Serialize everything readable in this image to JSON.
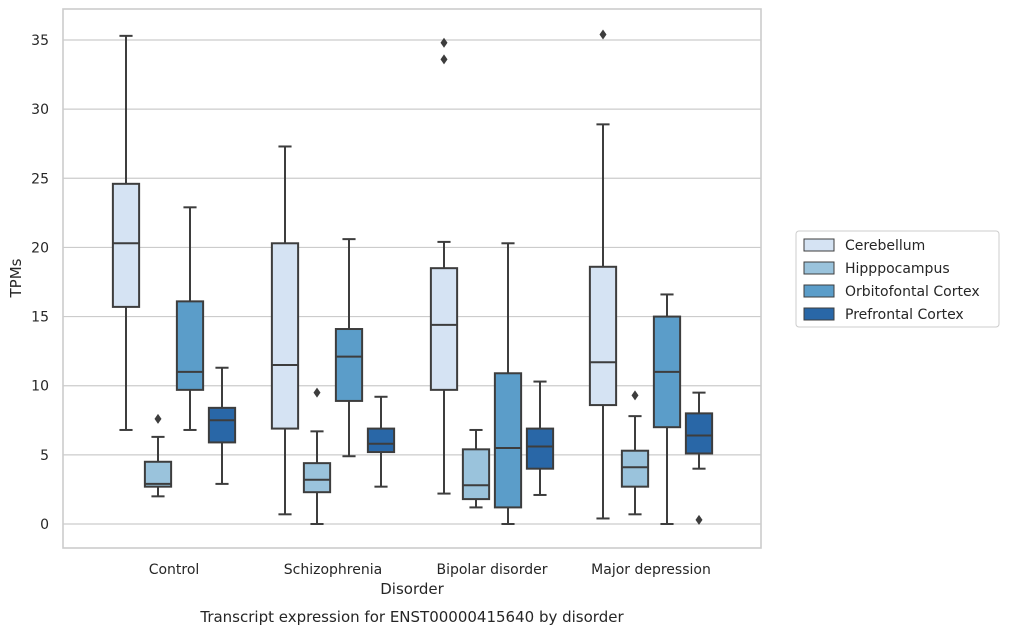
{
  "chart_data": {
    "type": "boxplot",
    "title": "",
    "caption": "Transcript expression for ENST00000415640 by disorder",
    "xlabel": "Disorder",
    "ylabel": "TPMs",
    "ylim": [
      -1.7,
      37.2
    ],
    "yticks": [
      0,
      5,
      10,
      15,
      20,
      25,
      30,
      35
    ],
    "grid": "horizontal",
    "legend_position": "right-outside",
    "categories": [
      "Control",
      "Schizophrenia",
      "Bipolar disorder",
      "Major depression"
    ],
    "series": [
      {
        "name": "Cerebellum",
        "color": "#d5e3f3",
        "boxes": [
          {
            "whisker_low": 6.8,
            "q1": 15.7,
            "median": 20.3,
            "q3": 24.6,
            "whisker_high": 35.3,
            "outliers": []
          },
          {
            "whisker_low": 0.7,
            "q1": 6.9,
            "median": 11.5,
            "q3": 20.3,
            "whisker_high": 27.3,
            "outliers": []
          },
          {
            "whisker_low": 2.2,
            "q1": 9.7,
            "median": 14.4,
            "q3": 18.5,
            "whisker_high": 20.4,
            "outliers": [
              33.6,
              34.8
            ]
          },
          {
            "whisker_low": 0.4,
            "q1": 8.6,
            "median": 11.7,
            "q3": 18.6,
            "whisker_high": 28.9,
            "outliers": [
              35.4
            ]
          }
        ]
      },
      {
        "name": "Hipppocampus",
        "color": "#9ac3dc",
        "boxes": [
          {
            "whisker_low": 2.0,
            "q1": 2.7,
            "median": 2.9,
            "q3": 4.5,
            "whisker_high": 6.3,
            "outliers": [
              7.6
            ]
          },
          {
            "whisker_low": 0.0,
            "q1": 2.3,
            "median": 3.2,
            "q3": 4.4,
            "whisker_high": 6.7,
            "outliers": [
              9.5
            ]
          },
          {
            "whisker_low": 1.2,
            "q1": 1.8,
            "median": 2.8,
            "q3": 5.4,
            "whisker_high": 6.8,
            "outliers": []
          },
          {
            "whisker_low": 0.7,
            "q1": 2.7,
            "median": 4.1,
            "q3": 5.3,
            "whisker_high": 7.8,
            "outliers": [
              9.3
            ]
          }
        ]
      },
      {
        "name": "Orbitofontal Cortex",
        "color": "#5b9dc9",
        "boxes": [
          {
            "whisker_low": 6.8,
            "q1": 9.7,
            "median": 11.0,
            "q3": 16.1,
            "whisker_high": 22.9,
            "outliers": []
          },
          {
            "whisker_low": 4.9,
            "q1": 8.9,
            "median": 12.1,
            "q3": 14.1,
            "whisker_high": 20.6,
            "outliers": []
          },
          {
            "whisker_low": 0.0,
            "q1": 1.2,
            "median": 5.5,
            "q3": 10.9,
            "whisker_high": 20.3,
            "outliers": []
          },
          {
            "whisker_low": 0.0,
            "q1": 7.0,
            "median": 11.0,
            "q3": 15.0,
            "whisker_high": 16.6,
            "outliers": []
          }
        ]
      },
      {
        "name": "Prefrontal Cortex",
        "color": "#2967a7",
        "boxes": [
          {
            "whisker_low": 2.9,
            "q1": 5.9,
            "median": 7.5,
            "q3": 8.4,
            "whisker_high": 11.3,
            "outliers": []
          },
          {
            "whisker_low": 2.7,
            "q1": 5.2,
            "median": 5.8,
            "q3": 6.9,
            "whisker_high": 9.2,
            "outliers": []
          },
          {
            "whisker_low": 2.1,
            "q1": 4.0,
            "median": 5.6,
            "q3": 6.9,
            "whisker_high": 10.3,
            "outliers": []
          },
          {
            "whisker_low": 4.0,
            "q1": 5.1,
            "median": 6.4,
            "q3": 8.0,
            "whisker_high": 9.5,
            "outliers": [
              0.3
            ]
          }
        ]
      }
    ]
  }
}
